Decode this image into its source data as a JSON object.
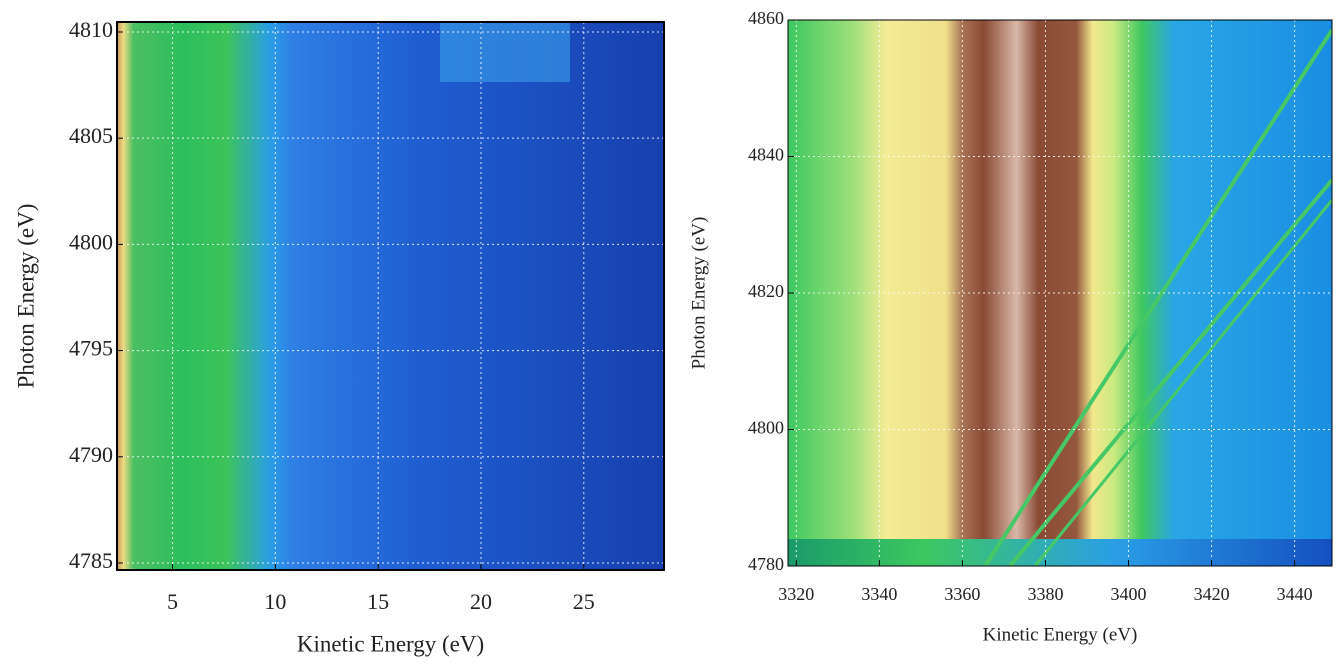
{
  "chart_data": [
    {
      "type": "heatmap",
      "x_label": "Kinetic Energy (eV)",
      "y_label": "Photon Energy (eV)",
      "xlim": [
        2.3,
        28.9
      ],
      "ylim": [
        4784.67,
        4810.47
      ],
      "xticks": [
        5,
        10,
        15,
        20,
        25
      ],
      "yticks": [
        4785,
        4790,
        4795,
        4800,
        4805,
        4810
      ],
      "grid": true
    },
    {
      "type": "heatmap",
      "x_label": "Kinetic Energy (eV)",
      "y_label": "Photon Energy (eV)",
      "xlim": [
        3318,
        3449
      ],
      "ylim": [
        4780,
        4860
      ],
      "xticks": [
        3320,
        3340,
        3360,
        3380,
        3400,
        3420,
        3440
      ],
      "yticks": [
        4780,
        4800,
        4820,
        4840,
        4860
      ],
      "grid": true
    }
  ]
}
